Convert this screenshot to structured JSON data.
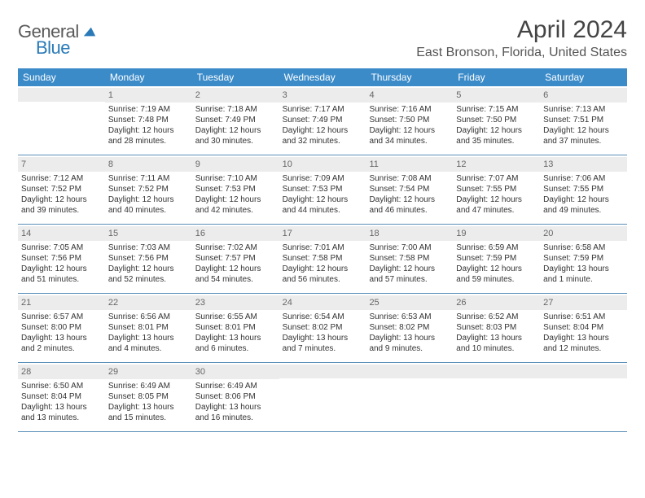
{
  "logo": {
    "part1": "General",
    "part2": "Blue"
  },
  "title": "April 2024",
  "location": "East Bronson, Florida, United States",
  "colors": {
    "header_bg": "#3b8bc9",
    "header_text": "#ffffff",
    "daynum_bg": "#ececec",
    "border": "#5a8fb8",
    "logo_gray": "#5a5a5a",
    "logo_blue": "#2a7ab8"
  },
  "day_names": [
    "Sunday",
    "Monday",
    "Tuesday",
    "Wednesday",
    "Thursday",
    "Friday",
    "Saturday"
  ],
  "weeks": [
    [
      {
        "empty": true
      },
      {
        "num": "1",
        "sunrise": "Sunrise: 7:19 AM",
        "sunset": "Sunset: 7:48 PM",
        "day1": "Daylight: 12 hours",
        "day2": "and 28 minutes."
      },
      {
        "num": "2",
        "sunrise": "Sunrise: 7:18 AM",
        "sunset": "Sunset: 7:49 PM",
        "day1": "Daylight: 12 hours",
        "day2": "and 30 minutes."
      },
      {
        "num": "3",
        "sunrise": "Sunrise: 7:17 AM",
        "sunset": "Sunset: 7:49 PM",
        "day1": "Daylight: 12 hours",
        "day2": "and 32 minutes."
      },
      {
        "num": "4",
        "sunrise": "Sunrise: 7:16 AM",
        "sunset": "Sunset: 7:50 PM",
        "day1": "Daylight: 12 hours",
        "day2": "and 34 minutes."
      },
      {
        "num": "5",
        "sunrise": "Sunrise: 7:15 AM",
        "sunset": "Sunset: 7:50 PM",
        "day1": "Daylight: 12 hours",
        "day2": "and 35 minutes."
      },
      {
        "num": "6",
        "sunrise": "Sunrise: 7:13 AM",
        "sunset": "Sunset: 7:51 PM",
        "day1": "Daylight: 12 hours",
        "day2": "and 37 minutes."
      }
    ],
    [
      {
        "num": "7",
        "sunrise": "Sunrise: 7:12 AM",
        "sunset": "Sunset: 7:52 PM",
        "day1": "Daylight: 12 hours",
        "day2": "and 39 minutes."
      },
      {
        "num": "8",
        "sunrise": "Sunrise: 7:11 AM",
        "sunset": "Sunset: 7:52 PM",
        "day1": "Daylight: 12 hours",
        "day2": "and 40 minutes."
      },
      {
        "num": "9",
        "sunrise": "Sunrise: 7:10 AM",
        "sunset": "Sunset: 7:53 PM",
        "day1": "Daylight: 12 hours",
        "day2": "and 42 minutes."
      },
      {
        "num": "10",
        "sunrise": "Sunrise: 7:09 AM",
        "sunset": "Sunset: 7:53 PM",
        "day1": "Daylight: 12 hours",
        "day2": "and 44 minutes."
      },
      {
        "num": "11",
        "sunrise": "Sunrise: 7:08 AM",
        "sunset": "Sunset: 7:54 PM",
        "day1": "Daylight: 12 hours",
        "day2": "and 46 minutes."
      },
      {
        "num": "12",
        "sunrise": "Sunrise: 7:07 AM",
        "sunset": "Sunset: 7:55 PM",
        "day1": "Daylight: 12 hours",
        "day2": "and 47 minutes."
      },
      {
        "num": "13",
        "sunrise": "Sunrise: 7:06 AM",
        "sunset": "Sunset: 7:55 PM",
        "day1": "Daylight: 12 hours",
        "day2": "and 49 minutes."
      }
    ],
    [
      {
        "num": "14",
        "sunrise": "Sunrise: 7:05 AM",
        "sunset": "Sunset: 7:56 PM",
        "day1": "Daylight: 12 hours",
        "day2": "and 51 minutes."
      },
      {
        "num": "15",
        "sunrise": "Sunrise: 7:03 AM",
        "sunset": "Sunset: 7:56 PM",
        "day1": "Daylight: 12 hours",
        "day2": "and 52 minutes."
      },
      {
        "num": "16",
        "sunrise": "Sunrise: 7:02 AM",
        "sunset": "Sunset: 7:57 PM",
        "day1": "Daylight: 12 hours",
        "day2": "and 54 minutes."
      },
      {
        "num": "17",
        "sunrise": "Sunrise: 7:01 AM",
        "sunset": "Sunset: 7:58 PM",
        "day1": "Daylight: 12 hours",
        "day2": "and 56 minutes."
      },
      {
        "num": "18",
        "sunrise": "Sunrise: 7:00 AM",
        "sunset": "Sunset: 7:58 PM",
        "day1": "Daylight: 12 hours",
        "day2": "and 57 minutes."
      },
      {
        "num": "19",
        "sunrise": "Sunrise: 6:59 AM",
        "sunset": "Sunset: 7:59 PM",
        "day1": "Daylight: 12 hours",
        "day2": "and 59 minutes."
      },
      {
        "num": "20",
        "sunrise": "Sunrise: 6:58 AM",
        "sunset": "Sunset: 7:59 PM",
        "day1": "Daylight: 13 hours",
        "day2": "and 1 minute."
      }
    ],
    [
      {
        "num": "21",
        "sunrise": "Sunrise: 6:57 AM",
        "sunset": "Sunset: 8:00 PM",
        "day1": "Daylight: 13 hours",
        "day2": "and 2 minutes."
      },
      {
        "num": "22",
        "sunrise": "Sunrise: 6:56 AM",
        "sunset": "Sunset: 8:01 PM",
        "day1": "Daylight: 13 hours",
        "day2": "and 4 minutes."
      },
      {
        "num": "23",
        "sunrise": "Sunrise: 6:55 AM",
        "sunset": "Sunset: 8:01 PM",
        "day1": "Daylight: 13 hours",
        "day2": "and 6 minutes."
      },
      {
        "num": "24",
        "sunrise": "Sunrise: 6:54 AM",
        "sunset": "Sunset: 8:02 PM",
        "day1": "Daylight: 13 hours",
        "day2": "and 7 minutes."
      },
      {
        "num": "25",
        "sunrise": "Sunrise: 6:53 AM",
        "sunset": "Sunset: 8:02 PM",
        "day1": "Daylight: 13 hours",
        "day2": "and 9 minutes."
      },
      {
        "num": "26",
        "sunrise": "Sunrise: 6:52 AM",
        "sunset": "Sunset: 8:03 PM",
        "day1": "Daylight: 13 hours",
        "day2": "and 10 minutes."
      },
      {
        "num": "27",
        "sunrise": "Sunrise: 6:51 AM",
        "sunset": "Sunset: 8:04 PM",
        "day1": "Daylight: 13 hours",
        "day2": "and 12 minutes."
      }
    ],
    [
      {
        "num": "28",
        "sunrise": "Sunrise: 6:50 AM",
        "sunset": "Sunset: 8:04 PM",
        "day1": "Daylight: 13 hours",
        "day2": "and 13 minutes."
      },
      {
        "num": "29",
        "sunrise": "Sunrise: 6:49 AM",
        "sunset": "Sunset: 8:05 PM",
        "day1": "Daylight: 13 hours",
        "day2": "and 15 minutes."
      },
      {
        "num": "30",
        "sunrise": "Sunrise: 6:49 AM",
        "sunset": "Sunset: 8:06 PM",
        "day1": "Daylight: 13 hours",
        "day2": "and 16 minutes."
      },
      {
        "empty": true
      },
      {
        "empty": true
      },
      {
        "empty": true
      },
      {
        "empty": true
      }
    ]
  ]
}
